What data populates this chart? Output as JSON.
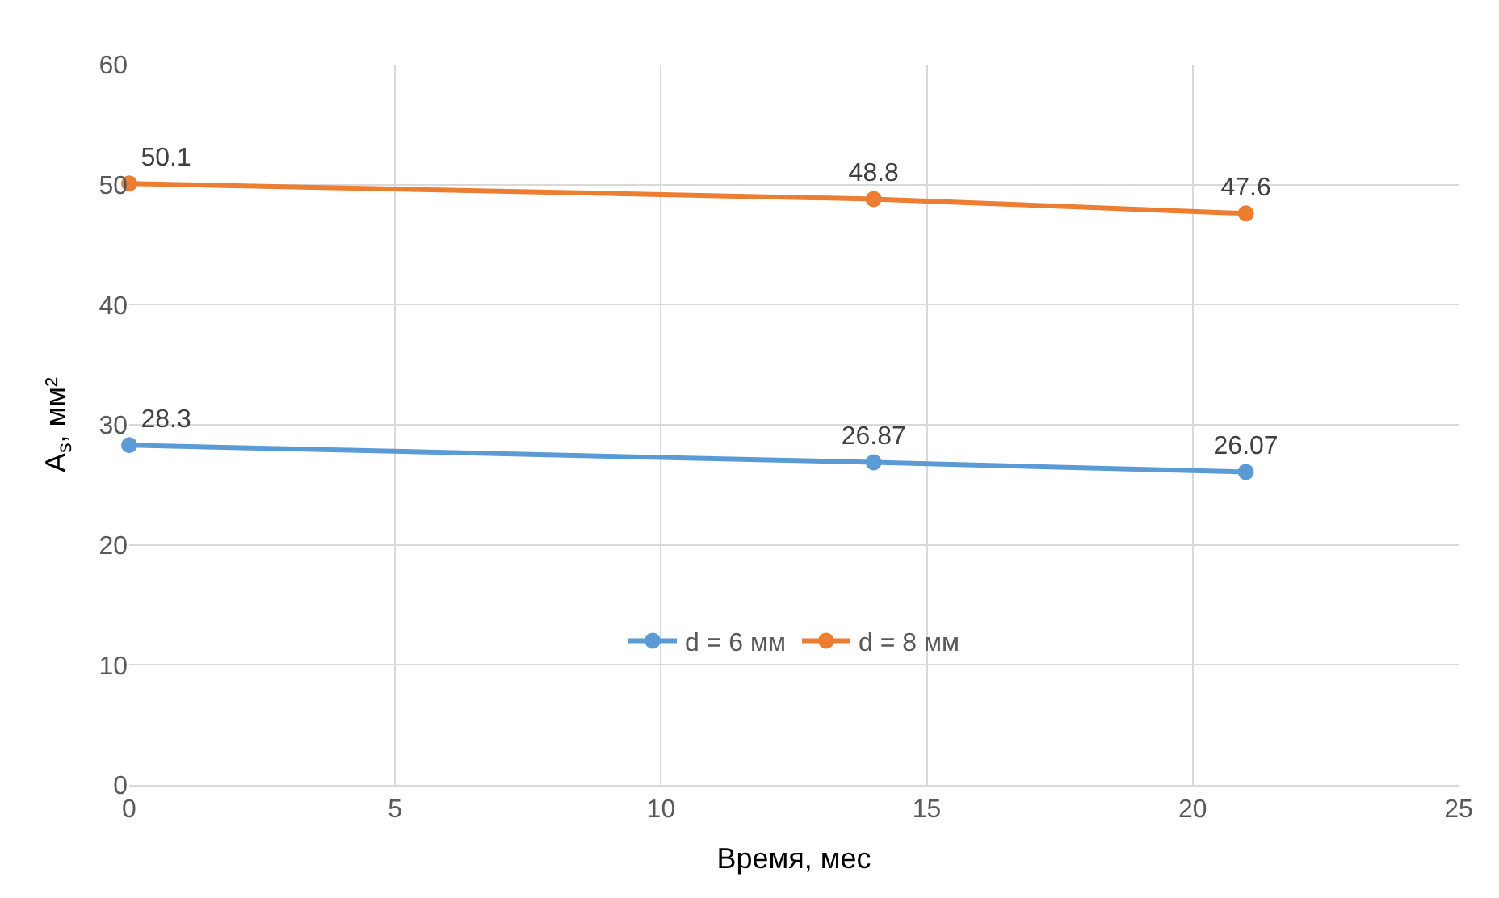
{
  "chart_data": {
    "type": "line",
    "xlabel": "Время, мес",
    "ylabel": "A$_{s}$, мм²",
    "x": [
      0,
      14,
      21
    ],
    "series": [
      {
        "name": "d = 6 мм",
        "color": "#5b9bd5",
        "values": [
          28.3,
          26.87,
          26.07
        ],
        "value_labels": [
          "28.3",
          "26.87",
          "26.07"
        ]
      },
      {
        "name": "d = 8 мм",
        "color": "#ed7d31",
        "values": [
          50.1,
          48.8,
          47.6
        ],
        "value_labels": [
          "50.1",
          "48.8",
          "47.6"
        ]
      }
    ],
    "xlim": [
      0,
      25
    ],
    "xticks": [
      0,
      5,
      10,
      15,
      20,
      25
    ],
    "ylim": [
      0,
      60
    ],
    "yticks": [
      0,
      10,
      20,
      30,
      40,
      50,
      60
    ],
    "grid": true,
    "legend": "center",
    "marker": "circle",
    "line_style": "solid"
  }
}
